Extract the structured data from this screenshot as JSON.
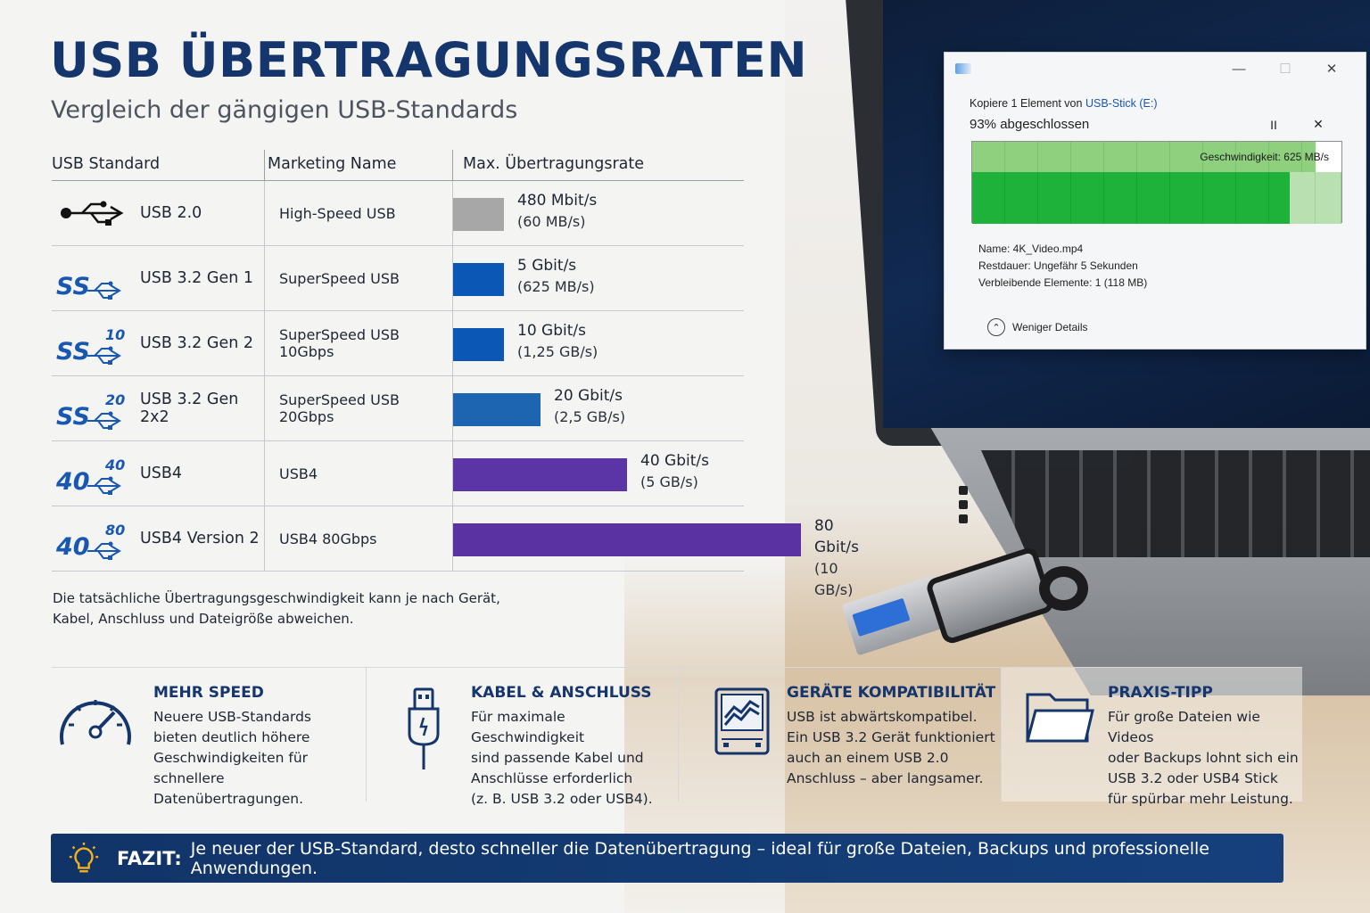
{
  "header": {
    "title": "USB ÜBERTRAGUNGSRATEN",
    "subtitle": "Vergleich der gängigen USB-Standards"
  },
  "table": {
    "columns": [
      "USB Standard",
      "Marketing Name",
      "Max. Übertragungsrate"
    ],
    "rows": [
      {
        "icon": "usb-trident-icon",
        "badge": "",
        "standard": "USB 2.0",
        "marketing": "High-Speed USB",
        "rate": "480 Mbit/s",
        "rate_sub": "(60 MB/s)",
        "gbit": 0.48,
        "color": "#a7a7a7"
      },
      {
        "icon": "superspeed-icon",
        "badge": "",
        "standard": "USB 3.2 Gen 1",
        "marketing": "SuperSpeed USB",
        "rate": "5 Gbit/s",
        "rate_sub": "(625 MB/s)",
        "gbit": 5,
        "color": "#0a57b6"
      },
      {
        "icon": "superspeed-10-icon",
        "badge": "10",
        "standard": "USB 3.2 Gen 2",
        "marketing": "SuperSpeed USB 10Gbps",
        "rate": "10 Gbit/s",
        "rate_sub": "(1,25 GB/s)",
        "gbit": 10,
        "color": "#0a57b6"
      },
      {
        "icon": "superspeed-20-icon",
        "badge": "20",
        "standard": "USB 3.2 Gen 2x2",
        "marketing": "SuperSpeed USB 20Gbps",
        "rate": "20 Gbit/s",
        "rate_sub": "(2,5 GB/s)",
        "gbit": 20,
        "color": "#1d64b1"
      },
      {
        "icon": "usb4-40-icon",
        "badge": "40",
        "standard": "USB4",
        "marketing": "USB4",
        "rate": "40 Gbit/s",
        "rate_sub": "(5 GB/s)",
        "gbit": 40,
        "color": "#5b35a6"
      },
      {
        "icon": "usb4-80-icon",
        "badge": "80",
        "standard": "USB4 Version 2",
        "marketing": "USB4 80Gbps",
        "rate": "80 Gbit/s",
        "rate_sub": "(10 GB/s)",
        "gbit": 80,
        "color": "#5a32a2"
      }
    ],
    "icon_ss_text": "SS",
    "icon_40_text": "40"
  },
  "note": {
    "line1": "Die tatsächliche Übertragungsgeschwindigkeit kann je nach Gerät,",
    "line2": "Kabel, Anschluss und Dateigröße abweichen."
  },
  "dialog": {
    "title": "",
    "copy_prefix": "Kopiere 1 Element von ",
    "copy_source": "USB-Stick (E:)",
    "percent": "93% abgeschlossen",
    "progress": 0.93,
    "pause_label": "II",
    "cancel_label": "✕",
    "speed": "Geschwindigkeit: 625 MB/s",
    "name": "Name: 4K_Video.mp4",
    "remaining_time": "Restdauer: Ungefähr 5 Sekunden",
    "remaining_items": "Verbleibende Elemente: 1 (118 MB)",
    "less_details": "Weniger Details",
    "minimize": "—",
    "maximize": "☐",
    "close": "✕"
  },
  "cards": [
    {
      "icon": "speedometer-icon",
      "title": "MEHR SPEED",
      "lines": [
        "Neuere USB-Standards",
        "bieten deutlich höhere",
        "Geschwindigkeiten für",
        "schnellere Datenübertragungen."
      ]
    },
    {
      "icon": "usb-cable-icon",
      "title": "KABEL & ANSCHLUSS",
      "lines": [
        "Für maximale Geschwindigkeit",
        "sind passende Kabel und",
        "Anschlüsse erforderlich",
        "(z. B. USB 3.2 oder USB4)."
      ]
    },
    {
      "icon": "device-compat-icon",
      "title": "GERÄTE KOMPATIBILITÄT",
      "lines": [
        "USB ist abwärtskompatibel.",
        "Ein USB 3.2 Gerät funktioniert",
        "auch an einem USB 2.0",
        "Anschluss – aber langsamer."
      ]
    },
    {
      "icon": "folder-icon",
      "title": "PRAXIS-TIPP",
      "lines": [
        "Für große Dateien wie Videos",
        "oder Backups lohnt sich ein",
        "USB 3.2 oder USB4 Stick",
        "für spürbar mehr Leistung."
      ]
    }
  ],
  "fazit": {
    "icon": "lightbulb-icon",
    "label": "FAZIT:",
    "text": "Je neuer der USB-Standard, desto schneller die Datenübertragung – ideal für große Dateien, Backups und professionelle Anwendungen."
  },
  "colors": {
    "heading_blue": "#15356d",
    "bar_blue": "#0a57b6",
    "bar_purple": "#5b35a6",
    "bar_grey": "#a7a7a7",
    "banner_blue": "#113468"
  }
}
